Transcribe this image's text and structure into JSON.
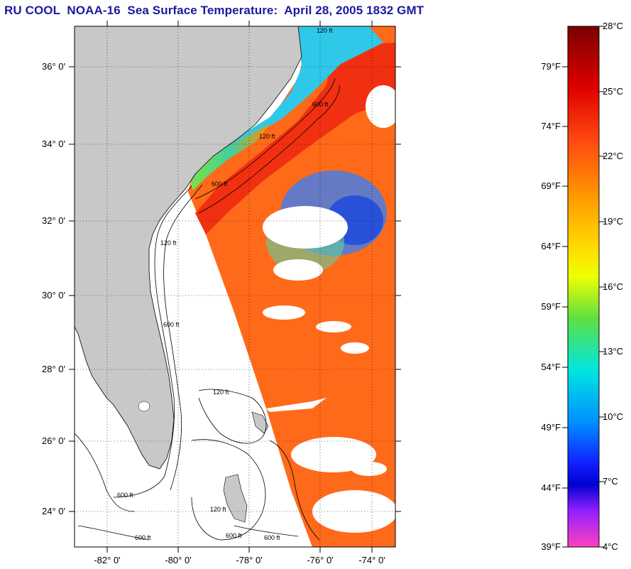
{
  "title": "RU COOL  NOAA-16  Sea Surface Temperature:  April 28, 2005 1832 GMT",
  "map": {
    "lat_ticks": [
      "36° 0'",
      "34° 0'",
      "32° 0'",
      "30° 0'",
      "28° 0'",
      "26° 0'",
      "24° 0'"
    ],
    "lon_ticks": [
      "-82° 0'",
      "-80° 0'",
      "-78° 0'",
      "-76° 0'",
      "-74° 0'"
    ],
    "contour_labels": [
      "120 ft",
      "600 ft",
      "120 ft",
      "600 ft",
      "120 ft",
      "600 ft",
      "120 ft",
      "600 ft",
      "600 ft",
      "120 ft",
      "600 ft",
      "600 ft"
    ],
    "land_color": "#c8c8c8",
    "no_data_color": "#ffffff"
  },
  "colorbar": {
    "celsius_labels": [
      "28°C",
      "25°C",
      "22°C",
      "19°C",
      "16°C",
      "13°C",
      "10°C",
      "7°C",
      "4°C"
    ],
    "fahrenheit_labels": [
      "79°F",
      "74°F",
      "69°F",
      "64°F",
      "59°F",
      "54°F",
      "49°F",
      "44°F",
      "39°F"
    ],
    "colors": [
      "#7a0000",
      "#e60000",
      "#ff6a1a",
      "#ffa000",
      "#ffff00",
      "#30e060",
      "#00e6e6",
      "#0070ff",
      "#0000e0",
      "#a020ff",
      "#ff40c0"
    ]
  }
}
